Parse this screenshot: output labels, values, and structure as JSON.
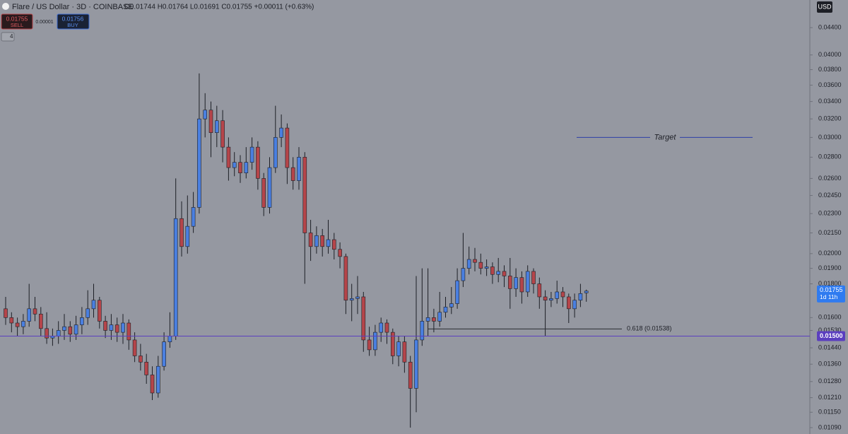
{
  "chart_data": {
    "type": "candlestick",
    "title": "Flare / US Dollar · 3D · COINBASE",
    "quote": "O0.01744 H0.01764 L0.01691 C0.01755 +0.00011 (+0.63%)",
    "sell": {
      "price": "0.01755",
      "label": "SELL"
    },
    "spread": "0.00001",
    "buy": {
      "price": "0.01756",
      "label": "BUY"
    },
    "interval_toggle": "4",
    "currency": "USD",
    "log_scale": true,
    "ylim": [
      0.01066,
      0.04845
    ],
    "yticks": [
      {
        "value": 0.044,
        "label": "0.04400"
      },
      {
        "value": 0.04,
        "label": "0.04000"
      },
      {
        "value": 0.038,
        "label": "0.03800"
      },
      {
        "value": 0.036,
        "label": "0.03600"
      },
      {
        "value": 0.034,
        "label": "0.03400"
      },
      {
        "value": 0.032,
        "label": "0.03200"
      },
      {
        "value": 0.03,
        "label": "0.03000"
      },
      {
        "value": 0.028,
        "label": "0.02800"
      },
      {
        "value": 0.026,
        "label": "0.02600"
      },
      {
        "value": 0.0245,
        "label": "0.02450"
      },
      {
        "value": 0.023,
        "label": "0.02300"
      },
      {
        "value": 0.0215,
        "label": "0.02150"
      },
      {
        "value": 0.02,
        "label": "0.02000"
      },
      {
        "value": 0.019,
        "label": "0.01900"
      },
      {
        "value": 0.018,
        "label": "0.01800"
      },
      {
        "value": 0.016,
        "label": "0.01600"
      },
      {
        "value": 0.0153,
        "label": "0.01530"
      },
      {
        "value": 0.0144,
        "label": "0.01440"
      },
      {
        "value": 0.0136,
        "label": "0.01360"
      },
      {
        "value": 0.0128,
        "label": "0.01280"
      },
      {
        "value": 0.0121,
        "label": "0.01210"
      },
      {
        "value": 0.0115,
        "label": "0.01150"
      },
      {
        "value": 0.0109,
        "label": "0.01090"
      }
    ],
    "series": {
      "up_color": "#4a7fe0",
      "down_color": "#b5454a",
      "open": [
        0.0165,
        0.016,
        0.0157,
        0.0155,
        0.0158,
        0.0165,
        0.0162,
        0.0154,
        0.0149,
        0.015,
        0.0153,
        0.0155,
        0.0151,
        0.0156,
        0.016,
        0.0165,
        0.017,
        0.0158,
        0.0153,
        0.0156,
        0.0152,
        0.0157,
        0.0148,
        0.014,
        0.0137,
        0.0131,
        0.0123,
        0.0135,
        0.0147,
        0.015,
        0.0226,
        0.0205,
        0.022,
        0.0235,
        0.032,
        0.033,
        0.0305,
        0.0318,
        0.029,
        0.027,
        0.0275,
        0.0265,
        0.0275,
        0.029,
        0.026,
        0.0235,
        0.027,
        0.03,
        0.031,
        0.027,
        0.0258,
        0.028,
        0.0215,
        0.0205,
        0.0213,
        0.0205,
        0.021,
        0.0203,
        0.0198,
        0.017,
        0.0171,
        0.0172,
        0.0148,
        0.0143,
        0.0152,
        0.0157,
        0.0152,
        0.014,
        0.0147,
        0.0137,
        0.0125,
        0.0148,
        0.0158,
        0.016,
        0.0158,
        0.0163,
        0.0166,
        0.0168,
        0.0182,
        0.019,
        0.0196,
        0.0194,
        0.019,
        0.0191,
        0.0186,
        0.0188,
        0.0185,
        0.0177,
        0.0184,
        0.0175,
        0.0188,
        0.018,
        0.0172,
        0.017,
        0.0171,
        0.0175,
        0.0172,
        0.0165,
        0.017,
        0.01744
      ],
      "high": [
        0.0172,
        0.0163,
        0.016,
        0.0162,
        0.018,
        0.0172,
        0.0166,
        0.0163,
        0.0154,
        0.0158,
        0.0162,
        0.0158,
        0.0161,
        0.0166,
        0.0176,
        0.018,
        0.0172,
        0.0161,
        0.0162,
        0.016,
        0.0162,
        0.0159,
        0.0152,
        0.0146,
        0.0141,
        0.0135,
        0.014,
        0.0152,
        0.0163,
        0.026,
        0.024,
        0.0245,
        0.0248,
        0.0375,
        0.035,
        0.034,
        0.0335,
        0.033,
        0.03,
        0.0285,
        0.0282,
        0.029,
        0.03,
        0.0296,
        0.0265,
        0.028,
        0.0335,
        0.0325,
        0.0315,
        0.028,
        0.029,
        0.0285,
        0.0225,
        0.022,
        0.0218,
        0.0225,
        0.0215,
        0.0208,
        0.02,
        0.018,
        0.0185,
        0.0175,
        0.0155,
        0.0156,
        0.016,
        0.0159,
        0.0154,
        0.015,
        0.015,
        0.014,
        0.0185,
        0.019,
        0.019,
        0.0165,
        0.0175,
        0.0172,
        0.0178,
        0.019,
        0.0215,
        0.0205,
        0.0204,
        0.02,
        0.0196,
        0.0194,
        0.0197,
        0.0192,
        0.0197,
        0.019,
        0.0188,
        0.0192,
        0.019,
        0.0184,
        0.0176,
        0.0175,
        0.0182,
        0.0178,
        0.0174,
        0.0174,
        0.018,
        0.01764
      ],
      "low": [
        0.0156,
        0.0152,
        0.015,
        0.0151,
        0.0155,
        0.0158,
        0.015,
        0.0146,
        0.0145,
        0.0146,
        0.0148,
        0.0147,
        0.0148,
        0.0151,
        0.0156,
        0.016,
        0.0154,
        0.0149,
        0.0148,
        0.0147,
        0.0146,
        0.0143,
        0.0137,
        0.0133,
        0.0127,
        0.012,
        0.0121,
        0.0133,
        0.0144,
        0.0148,
        0.0198,
        0.02,
        0.0215,
        0.023,
        0.03,
        0.028,
        0.029,
        0.0275,
        0.0258,
        0.0262,
        0.0256,
        0.026,
        0.0268,
        0.025,
        0.0228,
        0.023,
        0.0265,
        0.029,
        0.0255,
        0.025,
        0.025,
        0.018,
        0.0195,
        0.02,
        0.0198,
        0.02,
        0.0196,
        0.019,
        0.0162,
        0.0158,
        0.0162,
        0.0142,
        0.014,
        0.014,
        0.0147,
        0.0146,
        0.0136,
        0.0135,
        0.0132,
        0.0109,
        0.0115,
        0.0145,
        0.015,
        0.0152,
        0.0155,
        0.016,
        0.0162,
        0.0165,
        0.0178,
        0.0186,
        0.0188,
        0.0186,
        0.0185,
        0.018,
        0.0181,
        0.0178,
        0.0165,
        0.0172,
        0.0168,
        0.0172,
        0.0174,
        0.0165,
        0.015,
        0.0166,
        0.0168,
        0.0166,
        0.0157,
        0.016,
        0.0166,
        0.01691
      ],
      "close": [
        0.016,
        0.0157,
        0.0155,
        0.0158,
        0.0165,
        0.0162,
        0.0154,
        0.0149,
        0.015,
        0.0153,
        0.0155,
        0.0151,
        0.0156,
        0.016,
        0.0165,
        0.017,
        0.0158,
        0.0153,
        0.0156,
        0.0152,
        0.0157,
        0.0148,
        0.014,
        0.0137,
        0.0131,
        0.0123,
        0.0135,
        0.0147,
        0.015,
        0.0226,
        0.0205,
        0.022,
        0.0235,
        0.032,
        0.033,
        0.0305,
        0.0318,
        0.029,
        0.027,
        0.0275,
        0.0265,
        0.0275,
        0.029,
        0.026,
        0.0235,
        0.027,
        0.03,
        0.031,
        0.027,
        0.0258,
        0.028,
        0.0215,
        0.0205,
        0.0213,
        0.0205,
        0.021,
        0.0203,
        0.0198,
        0.017,
        0.0171,
        0.0172,
        0.0148,
        0.0143,
        0.0152,
        0.0157,
        0.0152,
        0.014,
        0.0147,
        0.0137,
        0.0125,
        0.0148,
        0.0158,
        0.016,
        0.0158,
        0.0163,
        0.0166,
        0.0168,
        0.0182,
        0.019,
        0.0196,
        0.0194,
        0.019,
        0.0191,
        0.0186,
        0.0188,
        0.0185,
        0.0177,
        0.0184,
        0.0175,
        0.0188,
        0.018,
        0.0172,
        0.017,
        0.0171,
        0.0175,
        0.0172,
        0.0165,
        0.017,
        0.0174,
        0.01755
      ]
    },
    "target": {
      "text": "Target",
      "value": 0.03
    },
    "fib_level": {
      "label": "0.618 (0.01538)",
      "value": 0.01538
    },
    "horizontal_line": {
      "value": 0.015,
      "label": "0.01500",
      "color": "#5b3fbf"
    },
    "last_price": {
      "value": 0.01755,
      "label": "0.01755",
      "countdown": "1d 11h",
      "color": "#2f7bf0"
    }
  }
}
